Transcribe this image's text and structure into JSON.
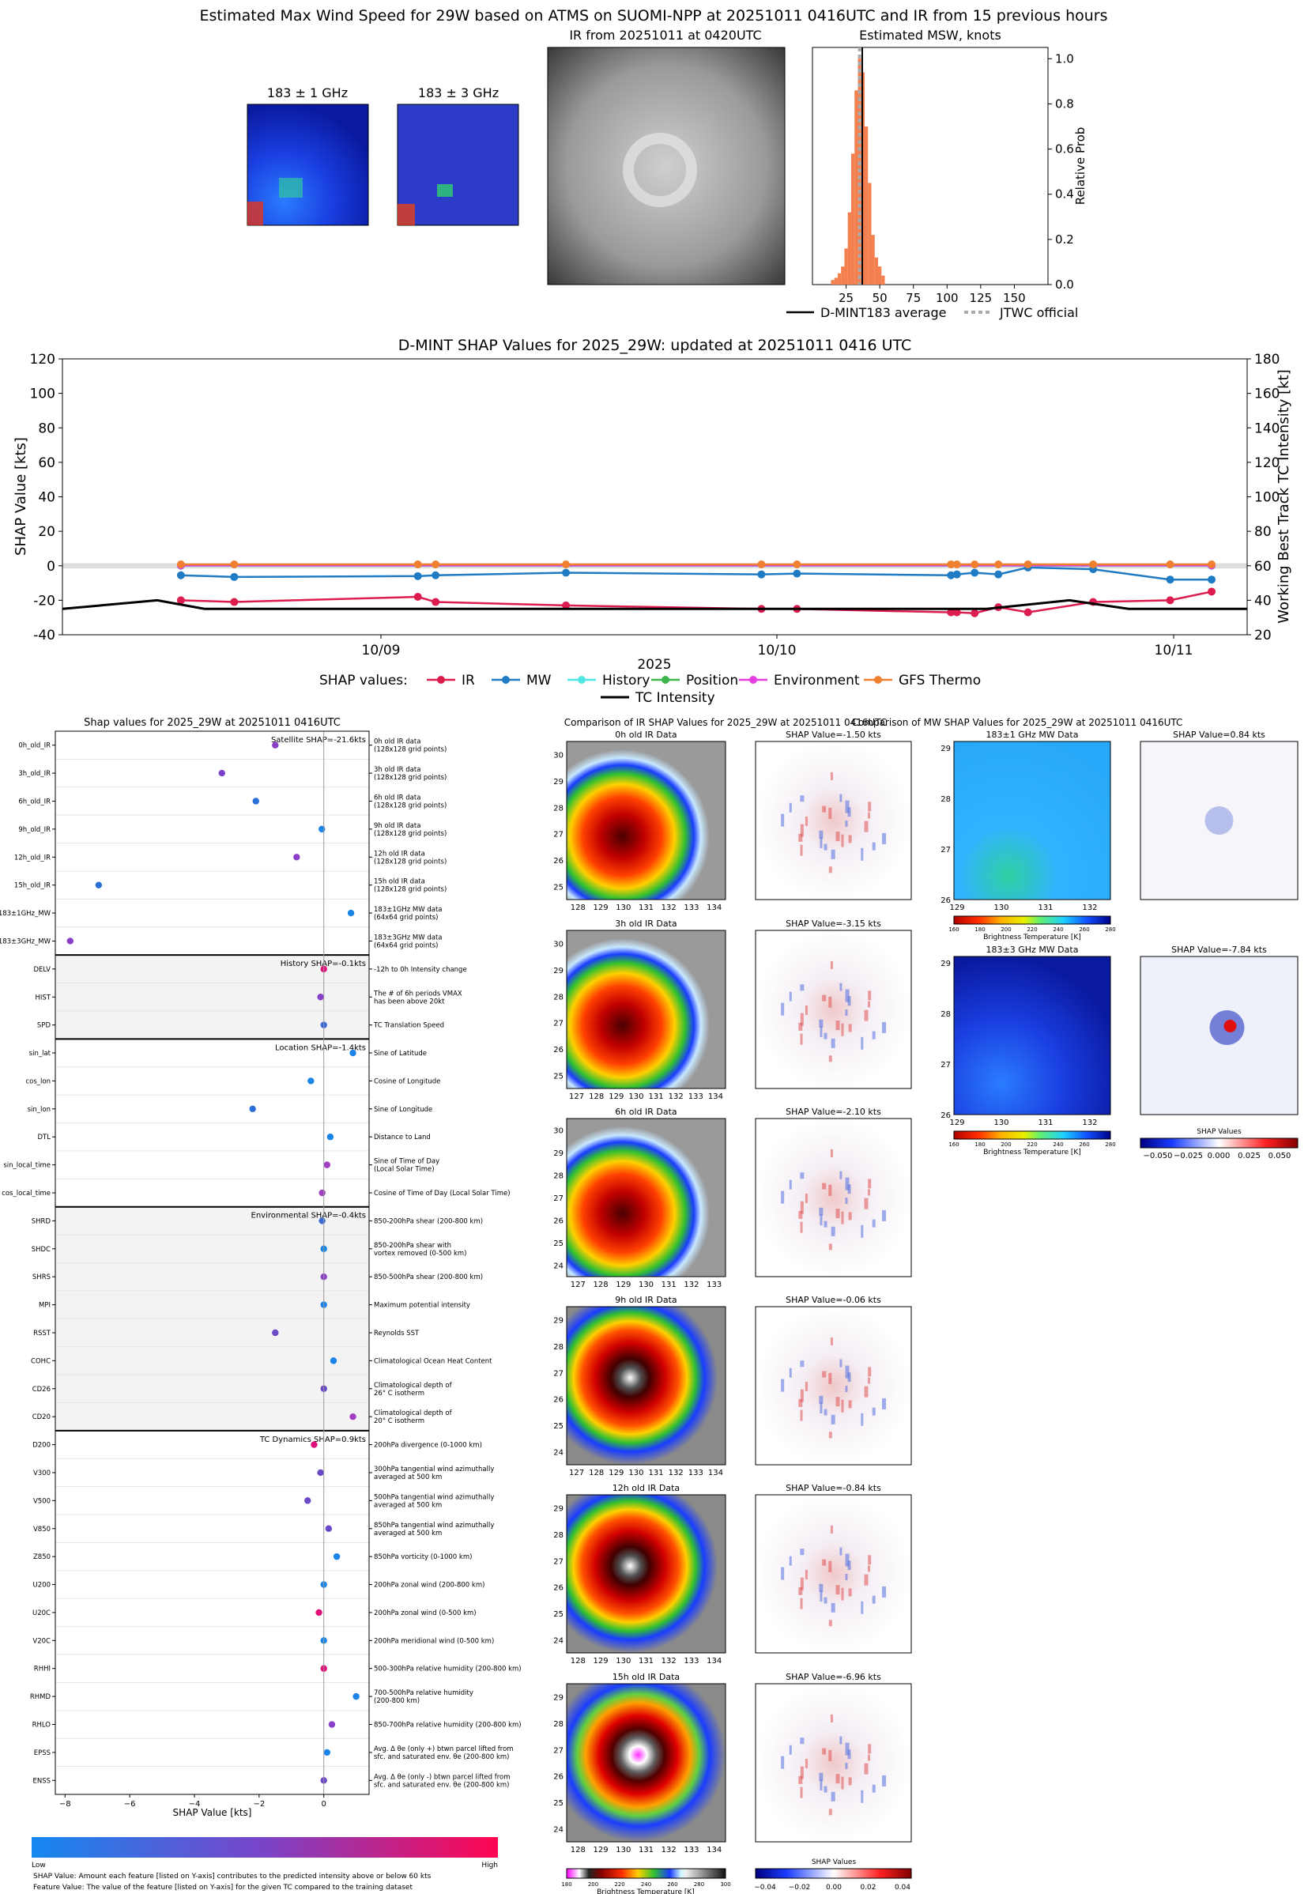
{
  "header": {
    "title": "Estimated Max Wind Speed for 29W based on ATMS on SUOMI-NPP at 20251011 0416UTC and IR from 15 previous hours"
  },
  "mw_panels": [
    {
      "title": "183 ± 1 GHz"
    },
    {
      "title": "183 ± 3 GHz"
    }
  ],
  "ir_panel": {
    "title": "IR from 20251011 at 0420UTC"
  },
  "msw_hist": {
    "title": "Estimated MSW, knots",
    "ylabel": "Relative Prob",
    "xticks": [
      "25",
      "50",
      "75",
      "100",
      "125",
      "150"
    ],
    "yticks": [
      "0.0",
      "0.2",
      "0.4",
      "0.6",
      "0.8",
      "1.0"
    ],
    "legend_avg": "D-MINT183 average",
    "legend_jtwc": "JTWC official",
    "accent": "#f47f4f"
  },
  "chart_data": [
    {
      "type": "bar",
      "title": "Estimated MSW, knots",
      "xlabel": "",
      "ylabel": "Relative Prob",
      "xlim": [
        0,
        175
      ],
      "ylim": [
        0,
        1.05
      ],
      "x": [
        15,
        17.5,
        20,
        22.5,
        25,
        27.5,
        30,
        32.5,
        35,
        37.5,
        40,
        42.5,
        45,
        47.5,
        50,
        52.5
      ],
      "values": [
        0.02,
        0.03,
        0.05,
        0.08,
        0.16,
        0.32,
        0.58,
        0.86,
        1.0,
        0.94,
        0.7,
        0.45,
        0.22,
        0.12,
        0.08,
        0.04
      ],
      "dmint_average": 37,
      "jtwc_official": 35
    },
    {
      "type": "line",
      "title": "D-MINT SHAP Values for 2025_29W: updated at 20251011 0416 UTC",
      "xlabel": "2025",
      "ylabel": "SHAP Value [kts]",
      "y2label": "Working Best Track TC Intensity [kt]",
      "ylim": [
        -40,
        120
      ],
      "y2lim": [
        20,
        180
      ],
      "yticks": [
        "-40",
        "-20",
        "0",
        "20",
        "40",
        "60",
        "80",
        "100",
        "120"
      ],
      "y2ticks": [
        "20",
        "40",
        "60",
        "80",
        "100",
        "120",
        "140",
        "160",
        "180"
      ],
      "xticks": [
        "10/09",
        "10/10",
        "10/11"
      ],
      "legend_title": "SHAP values:",
      "series": [
        {
          "name": "IR",
          "color": "#dc1b4f",
          "x": [
            0.1,
            0.145,
            0.3,
            0.315,
            0.425,
            0.59,
            0.62,
            0.75,
            0.755,
            0.77,
            0.79,
            0.815,
            0.87,
            0.935,
            0.97
          ],
          "values": [
            -20,
            -21,
            -18,
            -21,
            -23,
            -25,
            -25,
            -27,
            -27,
            -27.5,
            -24,
            -27,
            -21,
            -20,
            -15
          ]
        },
        {
          "name": "MW",
          "color": "#1f7bc4",
          "x": [
            0.1,
            0.145,
            0.3,
            0.315,
            0.425,
            0.59,
            0.62,
            0.75,
            0.755,
            0.77,
            0.79,
            0.815,
            0.87,
            0.935,
            0.97
          ],
          "values": [
            -5.5,
            -6.5,
            -6,
            -5.5,
            -4,
            -5,
            -4.5,
            -5.5,
            -5,
            -4,
            -5,
            -1,
            -2,
            -8,
            -8
          ]
        },
        {
          "name": "History",
          "color": "#4fe6e6",
          "x": [
            0.1,
            0.97
          ],
          "values": [
            0,
            0
          ]
        },
        {
          "name": "Position",
          "color": "#3fb44a",
          "x": [
            0.1,
            0.97
          ],
          "values": [
            0.5,
            0.5
          ]
        },
        {
          "name": "Environment",
          "color": "#e23ee0",
          "x": [
            0.1,
            0.97
          ],
          "values": [
            0.2,
            0.2
          ]
        },
        {
          "name": "GFS Thermo",
          "color": "#f07f30",
          "x": [
            0.1,
            0.145,
            0.3,
            0.315,
            0.425,
            0.59,
            0.62,
            0.75,
            0.755,
            0.77,
            0.79,
            0.815,
            0.87,
            0.935,
            0.97
          ],
          "values": [
            0.8,
            0.8,
            0.8,
            0.8,
            0.8,
            0.8,
            0.8,
            0.8,
            0.8,
            0.8,
            0.8,
            0.8,
            0.8,
            0.8,
            0.8
          ]
        },
        {
          "name": "TC Intensity",
          "color": "#000000",
          "x": [
            0.0,
            0.08,
            0.12,
            0.55,
            0.78,
            0.85,
            0.9,
            1.0
          ],
          "values": [
            35,
            40,
            35,
            35,
            35,
            40,
            35,
            35
          ]
        }
      ]
    },
    {
      "type": "scatter",
      "title": "Shap values for 2025_29W at 20251011 0416UTC",
      "xlabel": "SHAP Value [kts]",
      "xlim": [
        -8.3,
        1.4
      ],
      "xticks": [
        "-8",
        "-6",
        "-4",
        "-2",
        "0"
      ],
      "groups": [
        {
          "label": "Satellite SHAP=-21.6kts",
          "shaded": false,
          "rows": [
            {
              "f": "0h_old_IR",
              "d": "0h old IR data\n(128x128 grid points)",
              "v": -1.5,
              "c": "#8a3fc8"
            },
            {
              "f": "3h_old_IR",
              "d": "3h old IR data\n(128x128 grid points)",
              "v": -3.15,
              "c": "#7a40c8"
            },
            {
              "f": "6h_old_IR",
              "d": "6h old IR data\n(128x128 grid points)",
              "v": -2.1,
              "c": "#2a6fd8"
            },
            {
              "f": "9h_old_IR",
              "d": "9h old IR data\n(128x128 grid points)",
              "v": -0.06,
              "c": "#1a84e8"
            },
            {
              "f": "12h_old_IR",
              "d": "12h old IR data\n(128x128 grid points)",
              "v": -0.84,
              "c": "#8a3fc8"
            },
            {
              "f": "15h_old_IR",
              "d": "15h old IR data\n(128x128 grid points)",
              "v": -6.96,
              "c": "#2a6fd8"
            },
            {
              "f": "183±1GHz_MW",
              "d": "183±1GHz MW data\n(64x64 grid points)",
              "v": 0.84,
              "c": "#1a84e8"
            },
            {
              "f": "183±3GHz_MW",
              "d": "183±3GHz MW data\n(64x64 grid points)",
              "v": -7.84,
              "c": "#8a3fc8"
            }
          ]
        },
        {
          "label": "History SHAP=-0.1kts",
          "shaded": true,
          "rows": [
            {
              "f": "DELV",
              "d": "-12h to 0h Intensity change",
              "v": 0.0,
              "c": "#e0107a"
            },
            {
              "f": "HIST",
              "d": "The # of 6h periods VMAX\nhas been above 20kt",
              "v": -0.1,
              "c": "#8a3fc8"
            },
            {
              "f": "SPD",
              "d": "TC Translation Speed",
              "v": 0.0,
              "c": "#3a6ad8"
            }
          ]
        },
        {
          "label": "Location SHAP=-1.4kts",
          "shaded": false,
          "rows": [
            {
              "f": "sin_lat",
              "d": "Sine of Latitude",
              "v": 0.9,
              "c": "#1a84e8"
            },
            {
              "f": "cos_lon",
              "d": "Cosine of Longitude",
              "v": -0.4,
              "c": "#1a84e8"
            },
            {
              "f": "sin_lon",
              "d": "Sine of Longitude",
              "v": -2.2,
              "c": "#2a6fd8"
            },
            {
              "f": "DTL",
              "d": "Distance to Land",
              "v": 0.2,
              "c": "#1a84e8"
            },
            {
              "f": "sin_local_time",
              "d": "Sine of Time of Day\n(Local Solar Time)",
              "v": 0.1,
              "c": "#a13dc0"
            },
            {
              "f": "cos_local_time",
              "d": "Cosine of Time of Day (Local Solar Time)",
              "v": -0.05,
              "c": "#a13dc0"
            }
          ]
        },
        {
          "label": "Environmental SHAP=-0.4kts",
          "shaded": true,
          "rows": [
            {
              "f": "SHRD",
              "d": "850-200hPa shear (200-800 km)",
              "v": -0.05,
              "c": "#3a6ad8"
            },
            {
              "f": "SHDC",
              "d": "850-200hPa shear with\nvortex removed (0-500 km)",
              "v": 0.0,
              "c": "#1a84e8"
            },
            {
              "f": "SHRS",
              "d": "850-500hPa shear (200-800 km)",
              "v": 0.0,
              "c": "#8a3fc8"
            },
            {
              "f": "MPI",
              "d": "Maximum potential intensity",
              "v": 0.0,
              "c": "#1a84e8"
            },
            {
              "f": "RSST",
              "d": "Reynolds SST",
              "v": -1.5,
              "c": "#6a48c8"
            },
            {
              "f": "COHC",
              "d": "Climatological Ocean Heat Content",
              "v": 0.3,
              "c": "#1a84e8"
            },
            {
              "f": "CD26",
              "d": "Climatological depth of\n26° C isotherm",
              "v": 0.0,
              "c": "#6a48c8"
            },
            {
              "f": "CD20",
              "d": "Climatological depth of\n20° C isotherm",
              "v": 0.9,
              "c": "#a13dc0"
            }
          ]
        },
        {
          "label": "TC Dynamics SHAP=0.9kts",
          "shaded": false,
          "rows": [
            {
              "f": "D200",
              "d": "200hPa divergence (0-1000 km)",
              "v": -0.3,
              "c": "#e0107a"
            },
            {
              "f": "V300",
              "d": "300hPa tangential wind azimuthally\naveraged at 500 km",
              "v": -0.1,
              "c": "#6a48c8"
            },
            {
              "f": "V500",
              "d": "500hPa tangential wind azimuthally\naveraged at 500 km",
              "v": -0.5,
              "c": "#6a48c8"
            },
            {
              "f": "V850",
              "d": "850hPa tangential wind azimuthally\naveraged at 500 km",
              "v": 0.15,
              "c": "#6a48c8"
            },
            {
              "f": "Z850",
              "d": "850hPa vorticity (0-1000 km)",
              "v": 0.4,
              "c": "#1a84e8"
            },
            {
              "f": "U200",
              "d": "200hPa zonal wind (200-800 km)",
              "v": 0.0,
              "c": "#1a84e8"
            },
            {
              "f": "U20C",
              "d": "200hPa zonal wind (0-500 km)",
              "v": -0.15,
              "c": "#e0107a"
            },
            {
              "f": "V20C",
              "d": "200hPa meridional wind (0-500 km)",
              "v": 0.0,
              "c": "#1a84e8"
            },
            {
              "f": "RHHI",
              "d": "500-300hPa relative humidity (200-800 km)",
              "v": 0.0,
              "c": "#e0107a"
            },
            {
              "f": "RHMD",
              "d": "700-500hPa relative humidity\n(200-800 km)",
              "v": 1.0,
              "c": "#1a84e8"
            },
            {
              "f": "RHLO",
              "d": "850-700hPa relative humidity (200-800 km)",
              "v": 0.25,
              "c": "#8a3fc8"
            },
            {
              "f": "EPSS",
              "d": "Avg. Δ θe (only +) btwn parcel lifted from\nsfc. and saturated env. θe (200-800 km)",
              "v": 0.1,
              "c": "#1a84e8"
            },
            {
              "f": "ENSS",
              "d": "Avg. Δ θe (only -) btwn parcel lifted from\nsfc. and saturated env. θe (200-800 km)",
              "v": 0.0,
              "c": "#6a48c8"
            }
          ]
        }
      ]
    }
  ],
  "shap_time": {
    "title": "D-MINT SHAP Values for 2025_29W: updated at 20251011 0416 UTC",
    "year": "2025"
  },
  "feature_panel": {
    "title": "Shap values for 2025_29W at 20251011 0416UTC",
    "xlabel": "SHAP Value [kts]",
    "cbar_low": "Low",
    "cbar_high": "High",
    "note1": "SHAP Value: Amount each feature [listed on Y-axis] contributes to the predicted intensity above or below 60 kts",
    "note2": "Feature Value: The value of the feature [listed on Y-axis] for the given TC compared to the training dataset"
  },
  "ir_compare": {
    "title": "Comparison of IR SHAP Values for 2025_29W at 20251011 0416UTC",
    "rows": [
      {
        "left": "0h old IR Data",
        "right": "SHAP Value=-1.50 kts",
        "lat": [
          "30",
          "29",
          "28",
          "27",
          "26",
          "25"
        ],
        "lon": [
          "128",
          "129",
          "130",
          "131",
          "132",
          "133",
          "134"
        ]
      },
      {
        "left": "3h old IR Data",
        "right": "SHAP Value=-3.15 kts",
        "lat": [
          "30",
          "29",
          "28",
          "27",
          "26",
          "25"
        ],
        "lon": [
          "127",
          "128",
          "129",
          "130",
          "131",
          "132",
          "133",
          "134"
        ]
      },
      {
        "left": "6h old IR Data",
        "right": "SHAP Value=-2.10 kts",
        "lat": [
          "30",
          "29",
          "28",
          "27",
          "26",
          "25",
          "24"
        ],
        "lon": [
          "127",
          "128",
          "129",
          "130",
          "131",
          "132",
          "133"
        ]
      },
      {
        "left": "9h old IR Data",
        "right": "SHAP Value=-0.06 kts",
        "lat": [
          "29",
          "28",
          "27",
          "26",
          "25",
          "24"
        ],
        "lon": [
          "127",
          "128",
          "129",
          "130",
          "131",
          "132",
          "133",
          "134"
        ]
      },
      {
        "left": "12h old IR Data",
        "right": "SHAP Value=-0.84 kts",
        "lat": [
          "29",
          "28",
          "27",
          "26",
          "25",
          "24"
        ],
        "lon": [
          "128",
          "129",
          "130",
          "131",
          "132",
          "133",
          "134"
        ]
      },
      {
        "left": "15h old IR Data",
        "right": "SHAP Value=-6.96 kts",
        "lat": [
          "29",
          "28",
          "27",
          "26",
          "25",
          "24"
        ],
        "lon": [
          "128",
          "129",
          "130",
          "131",
          "132",
          "133",
          "134"
        ]
      }
    ],
    "cbar_label": "Brightness Temperature [K]",
    "cbar_ticks": [
      "180",
      "200",
      "220",
      "240",
      "260",
      "280",
      "300"
    ],
    "shap_cbar_label": "SHAP Values",
    "shap_cbar_ticks": [
      "−0.04",
      "−0.02",
      "0.00",
      "0.02",
      "0.04"
    ]
  },
  "mw_compare": {
    "title": "Comparison of MW SHAP Values for 2025_29W at 20251011 0416UTC",
    "rows": [
      {
        "left": "183±1 GHz MW Data",
        "right": "SHAP Value=0.84 kts"
      },
      {
        "left": "183±3 GHz MW Data",
        "right": "SHAP Value=-7.84 kts"
      }
    ],
    "lat": [
      "29",
      "28",
      "27",
      "26"
    ],
    "lon": [
      "129",
      "130",
      "131",
      "132"
    ],
    "cbar_label": "Brightness Temperature [K]",
    "cbar_ticks": [
      "160",
      "180",
      "200",
      "220",
      "240",
      "260",
      "280"
    ],
    "shap_cbar_label": "SHAP Values",
    "shap_cbar_ticks": [
      "−0.050",
      "−0.025",
      "0.000",
      "0.025",
      "0.050"
    ]
  }
}
